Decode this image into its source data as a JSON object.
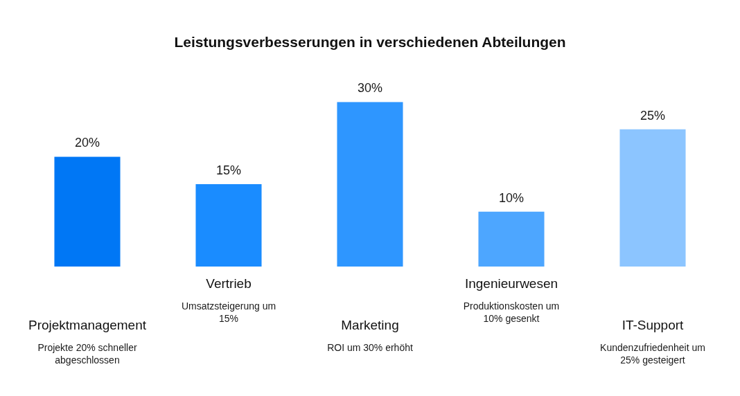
{
  "chart_data": {
    "type": "bar",
    "title": "Leistungsverbesserungen in verschiedenen Abteilungen",
    "categories": [
      "Projektmanagement",
      "Vertrieb",
      "Marketing",
      "Ingenieurwesen",
      "IT-Support"
    ],
    "values": [
      20,
      15,
      30,
      10,
      25
    ],
    "colors": [
      "#0077f5",
      "#1a8cff",
      "#2e96ff",
      "#4da6ff",
      "#8cc5ff"
    ],
    "value_labels": [
      "20%",
      "15%",
      "30%",
      "10%",
      "25%"
    ],
    "annotations": [
      "Projekte 20% schneller abgeschlossen",
      "Umsatzsteigerung um 15%",
      "ROI um 30% erhöht",
      "Produktionskosten um 10% gesenkt",
      "Kundenzufriedenheit um 25% gesteigert"
    ]
  }
}
